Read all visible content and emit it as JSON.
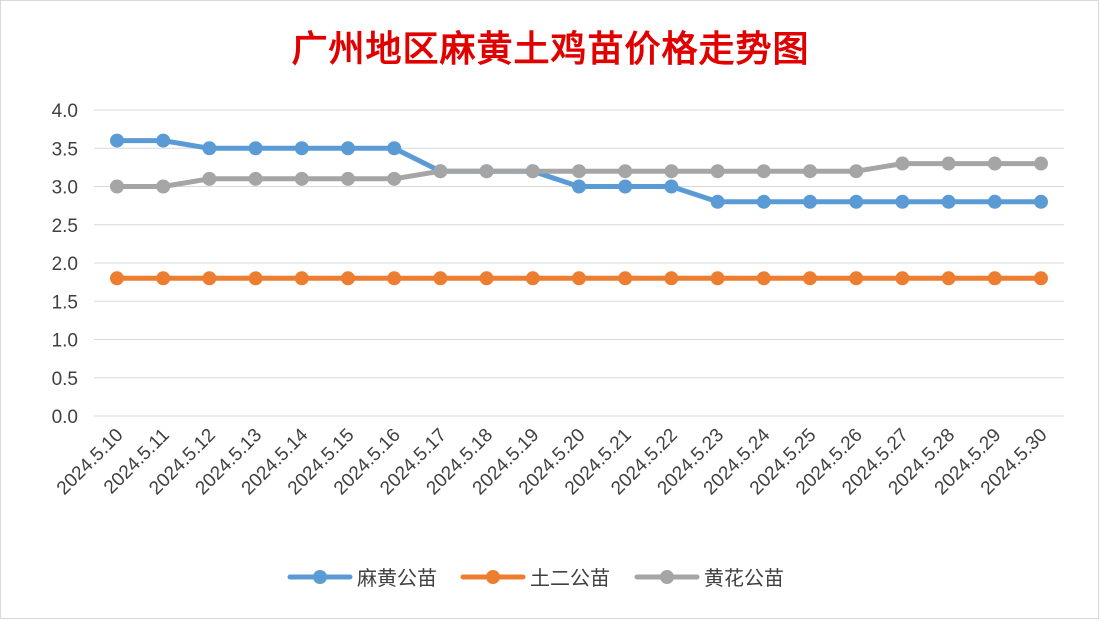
{
  "chart_data": {
    "type": "line",
    "title": "广州地区麻黄土鸡苗价格走势图",
    "xlabel": "",
    "ylabel": "",
    "ylim": [
      0,
      4
    ],
    "y_ticks": [
      "0.0",
      "0.5",
      "1.0",
      "1.5",
      "2.0",
      "2.5",
      "3.0",
      "3.5",
      "4.0"
    ],
    "grid": "horizontal",
    "legend_position": "bottom",
    "categories": [
      "2024.5.10",
      "2024.5.11",
      "2024.5.12",
      "2024.5.13",
      "2024.5.14",
      "2024.5.15",
      "2024.5.16",
      "2024.5.17",
      "2024.5.18",
      "2024.5.19",
      "2024.5.20",
      "2024.5.21",
      "2024.5.22",
      "2024.5.23",
      "2024.5.24",
      "2024.5.25",
      "2024.5.26",
      "2024.5.27",
      "2024.5.28",
      "2024.5.29",
      "2024.5.30"
    ],
    "series": [
      {
        "name": "麻黄公苗",
        "color": "#5b9bd5",
        "values": [
          3.6,
          3.6,
          3.5,
          3.5,
          3.5,
          3.5,
          3.5,
          3.2,
          3.2,
          3.2,
          3.0,
          3.0,
          3.0,
          2.8,
          2.8,
          2.8,
          2.8,
          2.8,
          2.8,
          2.8,
          2.8
        ]
      },
      {
        "name": "土二公苗",
        "color": "#ed7d31",
        "values": [
          1.8,
          1.8,
          1.8,
          1.8,
          1.8,
          1.8,
          1.8,
          1.8,
          1.8,
          1.8,
          1.8,
          1.8,
          1.8,
          1.8,
          1.8,
          1.8,
          1.8,
          1.8,
          1.8,
          1.8,
          1.8
        ]
      },
      {
        "name": "黄花公苗",
        "color": "#a5a5a5",
        "values": [
          3.0,
          3.0,
          3.1,
          3.1,
          3.1,
          3.1,
          3.1,
          3.2,
          3.2,
          3.2,
          3.2,
          3.2,
          3.2,
          3.2,
          3.2,
          3.2,
          3.2,
          3.3,
          3.3,
          3.3,
          3.3
        ]
      }
    ]
  }
}
